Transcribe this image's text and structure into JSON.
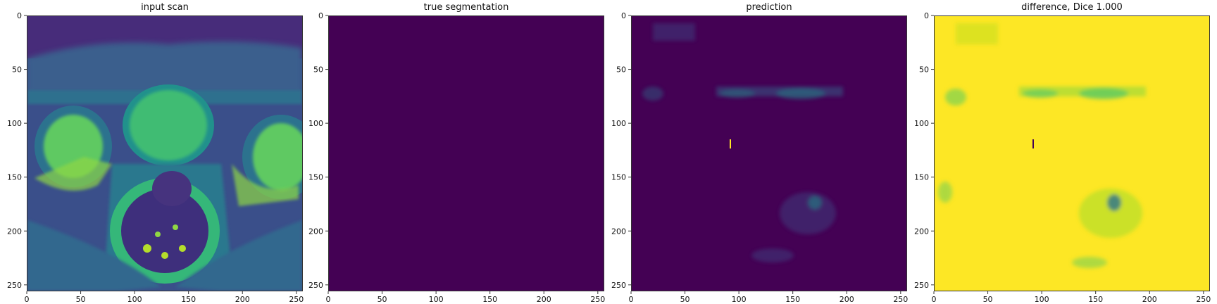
{
  "chart_data": [
    {
      "type": "heatmap",
      "title": "input scan",
      "colormap": "viridis",
      "content": "MRI slice",
      "xlim": [
        0,
        256
      ],
      "ylim": [
        256,
        0
      ],
      "xticks": [
        0,
        50,
        100,
        150,
        200,
        250
      ],
      "yticks": [
        0,
        50,
        100,
        150,
        200,
        250
      ]
    },
    {
      "type": "heatmap",
      "title": "true segmentation",
      "colormap": "viridis",
      "content": "uniform zero mask",
      "xlim": [
        0,
        256
      ],
      "ylim": [
        256,
        0
      ],
      "xticks": [
        0,
        50,
        100,
        150,
        200,
        250
      ],
      "yticks": [
        0,
        50,
        100,
        150,
        200,
        250
      ]
    },
    {
      "type": "heatmap",
      "title": "prediction",
      "colormap": "viridis",
      "content": "low-valued probability map",
      "xlim": [
        0,
        256
      ],
      "ylim": [
        256,
        0
      ],
      "xticks": [
        0,
        50,
        100,
        150,
        200,
        250
      ],
      "yticks": [
        0,
        50,
        100,
        150,
        200,
        250
      ]
    },
    {
      "type": "heatmap",
      "title": "difference, Dice 1.000",
      "colormap": "viridis",
      "content": "mostly high-valued difference map",
      "xlim": [
        0,
        256
      ],
      "ylim": [
        256,
        0
      ],
      "xticks": [
        0,
        50,
        100,
        150,
        200,
        250
      ],
      "yticks": [
        0,
        50,
        100,
        150,
        200,
        250
      ]
    }
  ],
  "colors": {
    "viridis_dark": "#440154",
    "viridis_blue": "#31688e",
    "viridis_teal": "#21918c",
    "viridis_green": "#5ec962",
    "viridis_yellow": "#fde725"
  }
}
